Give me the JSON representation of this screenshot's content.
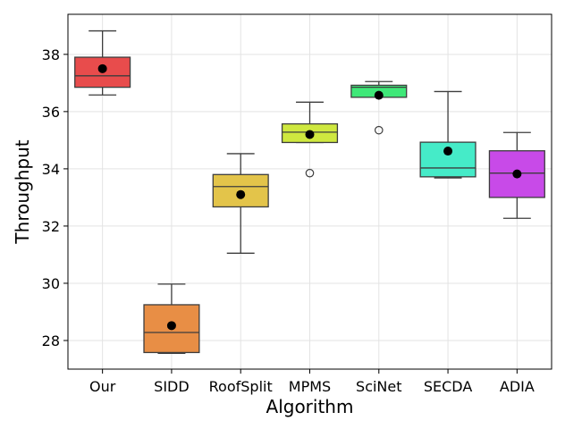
{
  "chart_data": {
    "type": "box",
    "title": "",
    "xlabel": "Algorithm",
    "ylabel": "Throughput",
    "ylim": [
      27,
      39.4
    ],
    "yticks": [
      28,
      30,
      32,
      34,
      36,
      38
    ],
    "grid": true,
    "categories": [
      "Our",
      "SIDD",
      "RoofSplit",
      "MPMS",
      "SciNet",
      "SECDA",
      "ADIA"
    ],
    "boxes": [
      {
        "name": "Our",
        "color": "#e84c4c",
        "whisker_low": 36.58,
        "q1": 36.85,
        "median": 37.25,
        "q3": 37.9,
        "whisker_high": 38.82,
        "mean": 37.5,
        "outliers": []
      },
      {
        "name": "SIDD",
        "color": "#e88e45",
        "whisker_low": 27.55,
        "q1": 27.58,
        "median": 28.28,
        "q3": 29.25,
        "whisker_high": 29.97,
        "mean": 28.52,
        "outliers": []
      },
      {
        "name": "RoofSplit",
        "color": "#e3c44a",
        "whisker_low": 31.05,
        "q1": 32.67,
        "median": 33.38,
        "q3": 33.8,
        "whisker_high": 34.53,
        "mean": 33.1,
        "outliers": []
      },
      {
        "name": "MPMS",
        "color": "#cfe83f",
        "whisker_low": 34.92,
        "q1": 34.92,
        "median": 35.28,
        "q3": 35.57,
        "whisker_high": 36.33,
        "mean": 35.2,
        "outliers": [
          33.85
        ]
      },
      {
        "name": "SciNet",
        "color": "#3fe878",
        "whisker_low": 36.5,
        "q1": 36.5,
        "median": 36.85,
        "q3": 36.92,
        "whisker_high": 37.05,
        "mean": 36.57,
        "outliers": [
          35.35
        ]
      },
      {
        "name": "SECDA",
        "color": "#45ebc8",
        "whisker_low": 33.68,
        "q1": 33.72,
        "median": 34.03,
        "q3": 34.93,
        "whisker_high": 36.7,
        "mean": 34.62,
        "outliers": []
      },
      {
        "name": "ADIA",
        "color": "#c84ae8",
        "whisker_low": 32.27,
        "q1": 33.0,
        "median": 33.85,
        "q3": 34.63,
        "whisker_high": 35.27,
        "mean": 33.82,
        "outliers": []
      }
    ]
  }
}
